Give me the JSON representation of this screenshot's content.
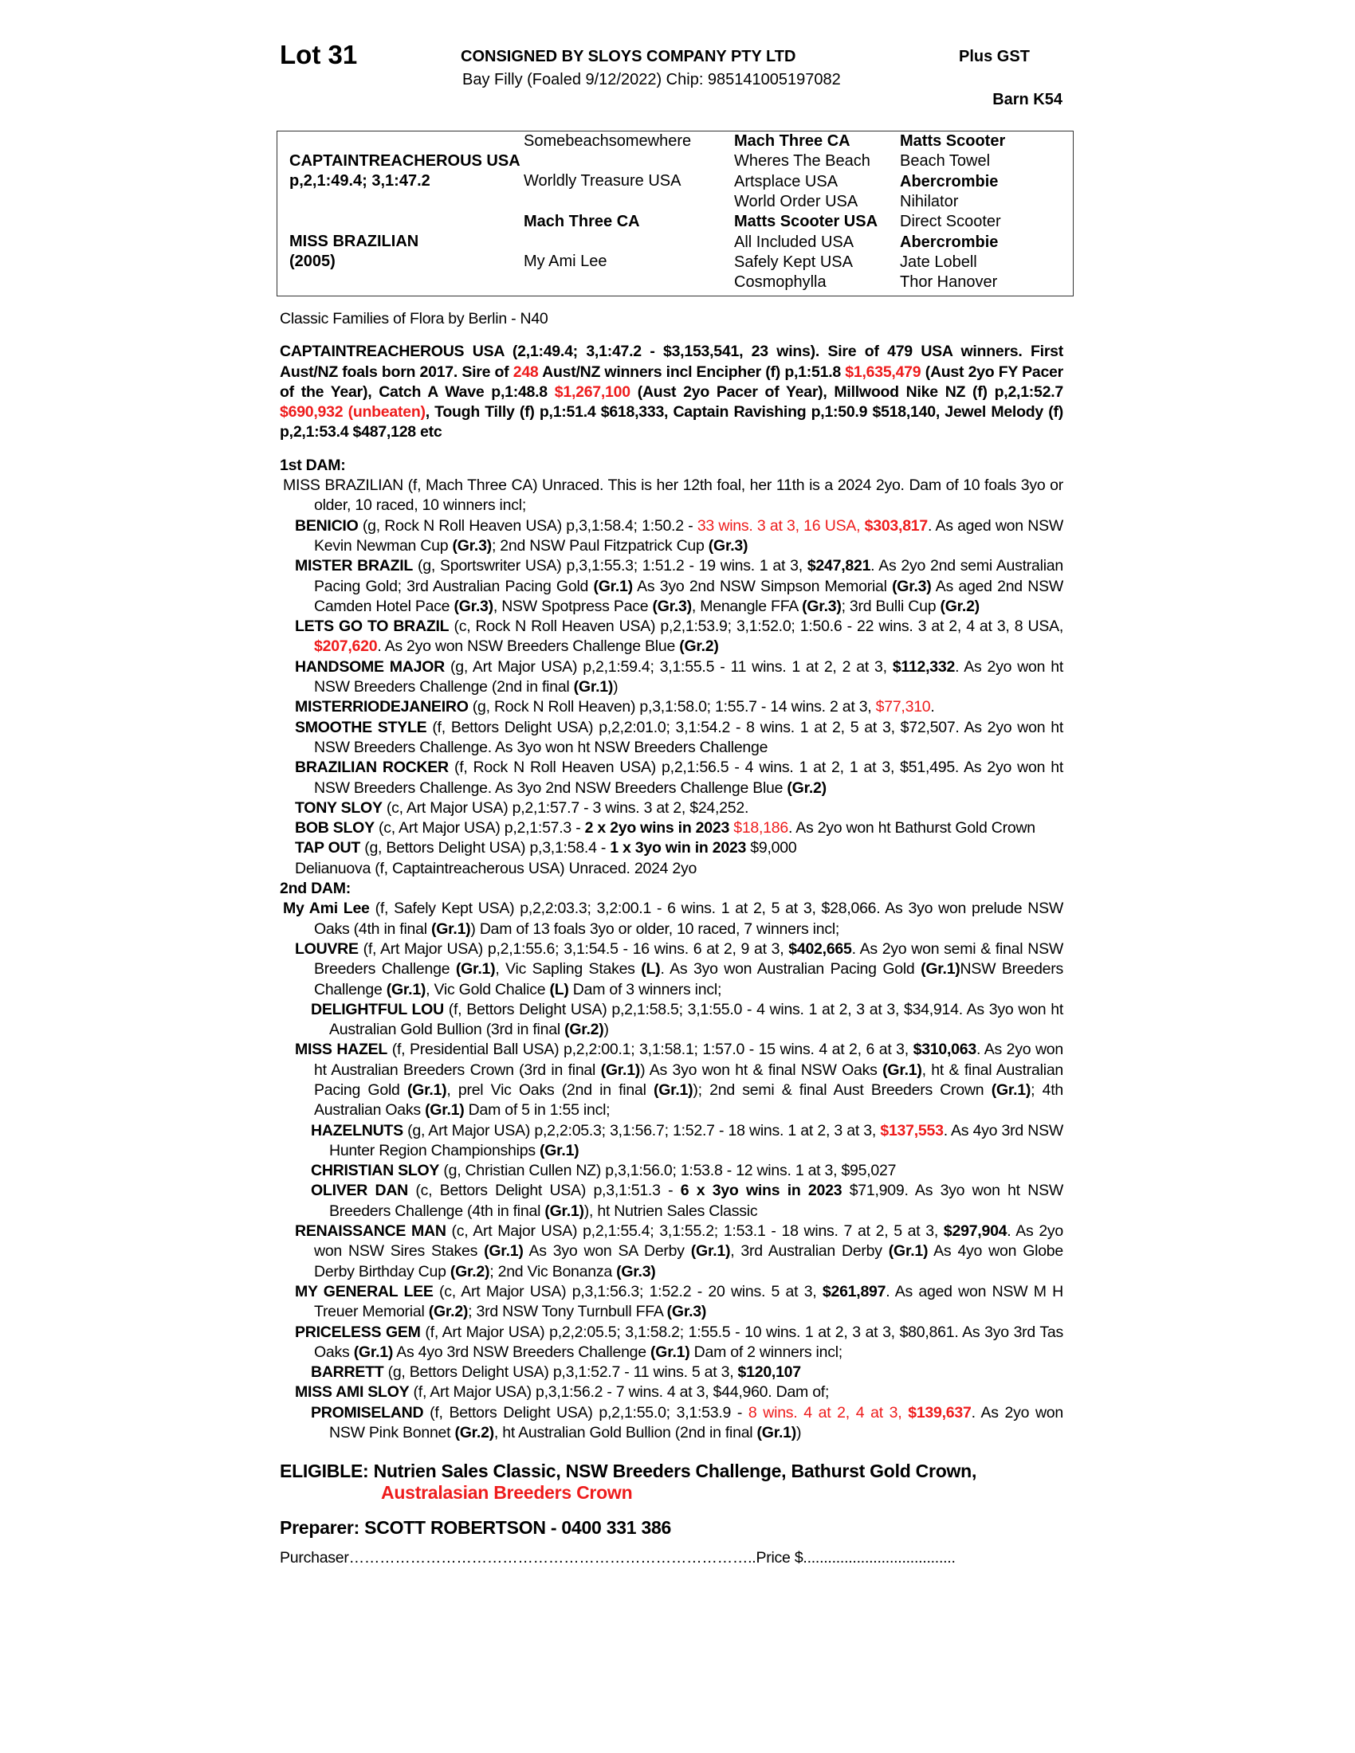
{
  "header": {
    "lot": "Lot 31",
    "consigned": "CONSIGNED BY SLOYS COMPANY PTY LTD",
    "plus_gst": "Plus GST",
    "horse_info": "Bay Filly (Foaled 9/12/2022) Chip: 985141005197082",
    "barn": "Barn K54"
  },
  "pedigree": {
    "sire": "CAPTAINTREACHEROUS USA",
    "sire_record": "p,2,1:49.4; 3,1:47.2",
    "dam": "MISS BRAZILIAN",
    "dam_year": "(2005)",
    "gen2": [
      "Somebeachsomewhere",
      "Worldly Treasure USA",
      "Mach Three CA",
      "My Ami Lee"
    ],
    "gen3": [
      "Mach Three CA",
      "Wheres The Beach",
      "Artsplace USA",
      "World Order USA",
      "Matts Scooter USA",
      "All Included USA",
      "Safely Kept USA",
      "Cosmophylla"
    ],
    "gen4": [
      "Matts Scooter",
      "Beach Towel",
      "Abercrombie",
      "Nihilator",
      "Direct Scooter",
      "Abercrombie",
      "Jate Lobell",
      "Thor Hanover"
    ]
  },
  "family": "Classic Families of Flora by Berlin - N40",
  "sire_summary": [
    [
      "CAPTAINTREACHEROUS USA (2,1:49.4; 3,1:47.2 - $3,153,541, 23 wins). Sire of 479 USA winners. First Aust/NZ foals born 2017. Sire of ",
      "b"
    ],
    [
      "248",
      "r"
    ],
    [
      " Aust/NZ winners incl Encipher (f) p,1:51.8 ",
      "b"
    ],
    [
      "$1,635,479",
      "r"
    ],
    [
      " (Aust 2yo FY Pacer of the Year), Catch A Wave p,1:48.8 ",
      "b"
    ],
    [
      "$1,267,100",
      "r"
    ],
    [
      " (Aust 2yo Pacer of Year), Millwood Nike NZ (f) p,2,1:52.7 ",
      "b"
    ],
    [
      "$690,932 (unbeaten)",
      "r"
    ],
    [
      ", Tough Tilly (f) p,1:51.4 $618,333, Captain Ravishing p,1:50.9 $518,140, Jewel Melody (f) p,2,1:53.4 $487,128 etc",
      "b"
    ]
  ],
  "dam1": {
    "heading": "1st DAM:",
    "entries": [
      {
        "level": 0,
        "runs": [
          [
            "MISS BRAZILIAN (f, Mach Three CA) Unraced. This is her 12th foal, her 11th is a 2024 2yo. Dam of 10 foals 3yo or older, 10 raced, 10 winners incl;",
            ""
          ]
        ]
      },
      {
        "level": 1,
        "runs": [
          [
            "BENICIO",
            "b"
          ],
          [
            " (g, Rock N Roll Heaven USA) p,3,1:58.4; 1:50.2 - ",
            ""
          ],
          [
            "33 wins. 3 at 3, 16 USA, ",
            "r"
          ],
          [
            "$303,817",
            "rb"
          ],
          [
            ". As aged won NSW Kevin Newman Cup ",
            ""
          ],
          [
            "(Gr.3)",
            "b"
          ],
          [
            "; 2nd NSW Paul Fitzpatrick Cup ",
            ""
          ],
          [
            "(Gr.3)",
            "b"
          ]
        ]
      },
      {
        "level": 1,
        "runs": [
          [
            "MISTER BRAZIL",
            "b"
          ],
          [
            " (g, Sportswriter USA) p,3,1:55.3; 1:51.2 - 19 wins. 1 at 3, ",
            ""
          ],
          [
            "$247,821",
            "b"
          ],
          [
            ". As 2yo 2nd semi Australian Pacing Gold; 3rd Australian Pacing Gold ",
            ""
          ],
          [
            "(Gr.1)",
            "b"
          ],
          [
            " As 3yo 2nd NSW Simpson Memorial ",
            ""
          ],
          [
            "(Gr.3)",
            "b"
          ],
          [
            " As aged 2nd NSW Camden Hotel Pace ",
            ""
          ],
          [
            "(Gr.3)",
            "b"
          ],
          [
            ", NSW Spotpress Pace ",
            ""
          ],
          [
            "(Gr.3)",
            "b"
          ],
          [
            ", Menangle FFA ",
            ""
          ],
          [
            "(Gr.3)",
            "b"
          ],
          [
            "; 3rd Bulli Cup ",
            ""
          ],
          [
            "(Gr.2)",
            "b"
          ]
        ]
      },
      {
        "level": 1,
        "runs": [
          [
            "LETS GO TO BRAZIL",
            "b"
          ],
          [
            " (c, Rock N Roll Heaven USA) p,2,1:53.9; 3,1:52.0; 1:50.6 - 22 wins. 3 at 2, 4 at 3, 8 USA, ",
            ""
          ],
          [
            "$207,620",
            "rb"
          ],
          [
            ". As 2yo won NSW Breeders Challenge Blue ",
            ""
          ],
          [
            "(Gr.2)",
            "b"
          ]
        ]
      },
      {
        "level": 1,
        "runs": [
          [
            "HANDSOME MAJOR",
            "b"
          ],
          [
            " (g, Art Major USA) p,2,1:59.4; 3,1:55.5 - 11 wins. 1 at 2, 2 at 3, ",
            ""
          ],
          [
            "$112,332",
            "b"
          ],
          [
            ". As 2yo won ht NSW Breeders Challenge (2nd in final ",
            ""
          ],
          [
            "(Gr.1)",
            "b"
          ],
          [
            ")",
            ""
          ]
        ]
      },
      {
        "level": 1,
        "runs": [
          [
            "MISTERRIODEJANEIRO",
            "b"
          ],
          [
            " (g, Rock N Roll Heaven) p,3,1:58.0; 1:55.7 - 14 wins. 2 at 3, ",
            ""
          ],
          [
            "$77,310",
            "r"
          ],
          [
            ".",
            ""
          ]
        ]
      },
      {
        "level": 1,
        "runs": [
          [
            "SMOOTHE STYLE",
            "b"
          ],
          [
            " (f, Bettors Delight USA) p,2,2:01.0; 3,1:54.2 - 8 wins. 1 at 2, 5 at 3, $72,507. As 2yo won ht NSW Breeders Challenge. As 3yo won ht NSW Breeders Challenge",
            ""
          ]
        ]
      },
      {
        "level": 1,
        "runs": [
          [
            "BRAZILIAN ROCKER",
            "b"
          ],
          [
            " (f, Rock N Roll Heaven USA) p,2,1:56.5 - 4 wins. 1 at 2, 1 at 3, $51,495. As 2yo won ht NSW Breeders Challenge. As 3yo 2nd NSW Breeders Challenge Blue ",
            ""
          ],
          [
            "(Gr.2)",
            "b"
          ]
        ]
      },
      {
        "level": 1,
        "runs": [
          [
            "TONY SLOY",
            "b"
          ],
          [
            " (c, Art Major USA) p,2,1:57.7 - 3 wins. 3 at 2, $24,252.",
            ""
          ]
        ]
      },
      {
        "level": 1,
        "runs": [
          [
            "BOB SLOY",
            "b"
          ],
          [
            " (c, Art Major USA) p,2,1:57.3 - ",
            ""
          ],
          [
            "2 x 2yo wins in 2023",
            "b"
          ],
          [
            " ",
            ""
          ],
          [
            "$18,186",
            "r"
          ],
          [
            ". As 2yo won ht Bathurst Gold Crown",
            ""
          ]
        ]
      },
      {
        "level": 1,
        "runs": [
          [
            "TAP OUT",
            "b"
          ],
          [
            " (g, Bettors Delight USA) p,3,1:58.4 - ",
            ""
          ],
          [
            "1 x 3yo win in 2023",
            "b"
          ],
          [
            " $9,000",
            ""
          ]
        ]
      },
      {
        "level": 1,
        "runs": [
          [
            "Delianuova (f, Captaintreacherous USA) Unraced. 2024 2yo",
            ""
          ]
        ]
      }
    ]
  },
  "dam2": {
    "heading": "2nd DAM:",
    "entries": [
      {
        "level": 0,
        "runs": [
          [
            "My Ami Lee",
            "b"
          ],
          [
            " (f, Safely Kept USA) p,2,2:03.3; 3,2:00.1 - 6 wins. 1 at 2, 5 at 3, $28,066. As 3yo won prelude NSW Oaks (4th in final ",
            ""
          ],
          [
            "(Gr.1)",
            "b"
          ],
          [
            ") Dam of 13 foals 3yo or older, 10 raced, 7 winners incl;",
            ""
          ]
        ]
      },
      {
        "level": 1,
        "runs": [
          [
            "LOUVRE",
            "b"
          ],
          [
            " (f, Art Major USA) p,2,1:55.6; 3,1:54.5 - 16 wins. 6 at 2, 9 at 3, ",
            ""
          ],
          [
            "$402,665",
            "b"
          ],
          [
            ". As 2yo won semi & final NSW Breeders Challenge ",
            ""
          ],
          [
            "(Gr.1)",
            "b"
          ],
          [
            ", Vic Sapling Stakes ",
            ""
          ],
          [
            "(L)",
            "b"
          ],
          [
            ". As 3yo won Australian Pacing Gold ",
            ""
          ],
          [
            "(Gr.1)",
            "b"
          ],
          [
            "NSW Breeders Challenge ",
            ""
          ],
          [
            "(Gr.1)",
            "b"
          ],
          [
            ", Vic Gold Chalice ",
            ""
          ],
          [
            "(L)",
            "b"
          ],
          [
            " Dam of 3 winners incl;",
            ""
          ]
        ]
      },
      {
        "level": 2,
        "runs": [
          [
            "DELIGHTFUL LOU",
            "b"
          ],
          [
            " (f, Bettors Delight USA) p,2,1:58.5; 3,1:55.0 - 4 wins. 1 at 2, 3 at 3, $34,914. As 3yo won ht Australian Gold Bullion (3rd in final ",
            ""
          ],
          [
            "(Gr.2)",
            "b"
          ],
          [
            ")",
            ""
          ]
        ]
      },
      {
        "level": 1,
        "runs": [
          [
            "MISS HAZEL",
            "b"
          ],
          [
            " (f, Presidential Ball USA) p,2,2:00.1; 3,1:58.1; 1:57.0 - 15 wins. 4 at 2, 6 at 3, ",
            ""
          ],
          [
            "$310,063",
            "b"
          ],
          [
            ". As 2yo won ht Australian Breeders Crown (3rd in final ",
            ""
          ],
          [
            "(Gr.1)",
            "b"
          ],
          [
            ") As 3yo won ht & final NSW Oaks ",
            ""
          ],
          [
            "(Gr.1)",
            "b"
          ],
          [
            ", ht & final Australian Pacing Gold ",
            ""
          ],
          [
            "(Gr.1)",
            "b"
          ],
          [
            ", prel Vic Oaks (2nd in final ",
            ""
          ],
          [
            "(Gr.1)",
            "b"
          ],
          [
            "); 2nd semi & final Aust Breeders Crown ",
            ""
          ],
          [
            "(Gr.1)",
            "b"
          ],
          [
            "; 4th Australian Oaks ",
            ""
          ],
          [
            "(Gr.1)",
            "b"
          ],
          [
            " Dam of 5 in 1:55 incl;",
            ""
          ]
        ]
      },
      {
        "level": 2,
        "runs": [
          [
            "HAZELNUTS",
            "b"
          ],
          [
            " (g, Art Major USA) p,2,2:05.3; 3,1:56.7; 1:52.7 - 18 wins. 1 at 2, 3 at 3, ",
            ""
          ],
          [
            "$137,553",
            "rb"
          ],
          [
            ". As 4yo 3rd NSW Hunter Region Championships ",
            ""
          ],
          [
            "(Gr.1)",
            "b"
          ]
        ]
      },
      {
        "level": 2,
        "runs": [
          [
            "CHRISTIAN SLOY",
            "b"
          ],
          [
            " (g, Christian Cullen NZ) p,3,1:56.0; 1:53.8 - 12 wins. 1 at 3, $95,027",
            ""
          ]
        ]
      },
      {
        "level": 2,
        "runs": [
          [
            "OLIVER DAN",
            "b"
          ],
          [
            " (c, Bettors Delight USA) p,3,1:51.3 -  ",
            ""
          ],
          [
            "6 x 3yo wins in 2023",
            "b"
          ],
          [
            " $71,909. As 3yo won ht NSW Breeders Challenge (4th in final ",
            ""
          ],
          [
            "(Gr.1)",
            "b"
          ],
          [
            "), ht Nutrien Sales Classic",
            ""
          ]
        ]
      },
      {
        "level": 1,
        "runs": [
          [
            "RENAISSANCE MAN",
            "b"
          ],
          [
            " (c, Art Major USA) p,2,1:55.4; 3,1:55.2; 1:53.1 - 18 wins. 7 at 2, 5 at 3, ",
            ""
          ],
          [
            "$297,904",
            "b"
          ],
          [
            ". As 2yo won NSW Sires Stakes ",
            ""
          ],
          [
            "(Gr.1)",
            "b"
          ],
          [
            " As 3yo won SA Derby ",
            ""
          ],
          [
            "(Gr.1)",
            "b"
          ],
          [
            ", 3rd Australian Derby ",
            ""
          ],
          [
            "(Gr.1)",
            "b"
          ],
          [
            " As 4yo won Globe Derby Birthday Cup ",
            ""
          ],
          [
            "(Gr.2)",
            "b"
          ],
          [
            "; 2nd Vic Bonanza ",
            ""
          ],
          [
            "(Gr.3)",
            "b"
          ]
        ]
      },
      {
        "level": 1,
        "runs": [
          [
            "MY GENERAL LEE",
            "b"
          ],
          [
            " (c, Art Major USA) p,3,1:56.3; 1:52.2 - 20 wins. 5 at 3, ",
            ""
          ],
          [
            "$261,897",
            "b"
          ],
          [
            ". As aged won NSW M H Treuer Memorial ",
            ""
          ],
          [
            "(Gr.2)",
            "b"
          ],
          [
            "; 3rd NSW Tony Turnbull FFA ",
            ""
          ],
          [
            "(Gr.3)",
            "b"
          ]
        ]
      },
      {
        "level": 1,
        "runs": [
          [
            "PRICELESS GEM",
            "b"
          ],
          [
            " (f, Art Major USA) p,2,2:05.5; 3,1:58.2; 1:55.5 - 10 wins. 1 at 2, 3 at 3, $80,861. As 3yo 3rd Tas Oaks ",
            ""
          ],
          [
            "(Gr.1)",
            "b"
          ],
          [
            " As 4yo 3rd NSW Breeders Challenge ",
            ""
          ],
          [
            "(Gr.1)",
            "b"
          ],
          [
            " Dam of 2 winners incl;",
            ""
          ]
        ]
      },
      {
        "level": 2,
        "runs": [
          [
            "BARRETT",
            "b"
          ],
          [
            " (g, Bettors Delight USA) p,3,1:52.7 - 11 wins. 5 at 3, ",
            ""
          ],
          [
            "$120,107",
            "b"
          ]
        ]
      },
      {
        "level": 1,
        "runs": [
          [
            "MISS AMI SLOY",
            "b"
          ],
          [
            " (f, Art Major USA) p,3,1:56.2 - 7 wins. 4 at 3, $44,960. Dam of;",
            ""
          ]
        ]
      },
      {
        "level": 2,
        "runs": [
          [
            "PROMISELAND",
            "b"
          ],
          [
            " (f, Bettors Delight USA) p,2,1:55.0; 3,1:53.9 - ",
            ""
          ],
          [
            "8 wins. 4 at 2, 4 at 3, ",
            "r"
          ],
          [
            "$139,637",
            "rb"
          ],
          [
            ". As 2yo won NSW Pink Bonnet ",
            ""
          ],
          [
            "(Gr.2)",
            "b"
          ],
          [
            ", ht Australian Gold Bullion (2nd in final ",
            ""
          ],
          [
            "(Gr.1)",
            "b"
          ],
          [
            ")",
            ""
          ]
        ]
      }
    ]
  },
  "eligible": {
    "label": "ELIGIBLE:",
    "line1": " Nutrien Sales Classic, NSW Breeders Challenge, Bathurst Gold Crown,",
    "line2": "Australasian Breeders Crown"
  },
  "preparer": "Preparer: SCOTT ROBERTSON - 0400 331 386",
  "purchaser": {
    "label": "Purchaser",
    "dots": "……………………………………………………………………..",
    "price_label": "Price $",
    "price_dots": "....................................."
  },
  "colors": {
    "highlight": "#ee1c1c",
    "text": "#000000"
  }
}
